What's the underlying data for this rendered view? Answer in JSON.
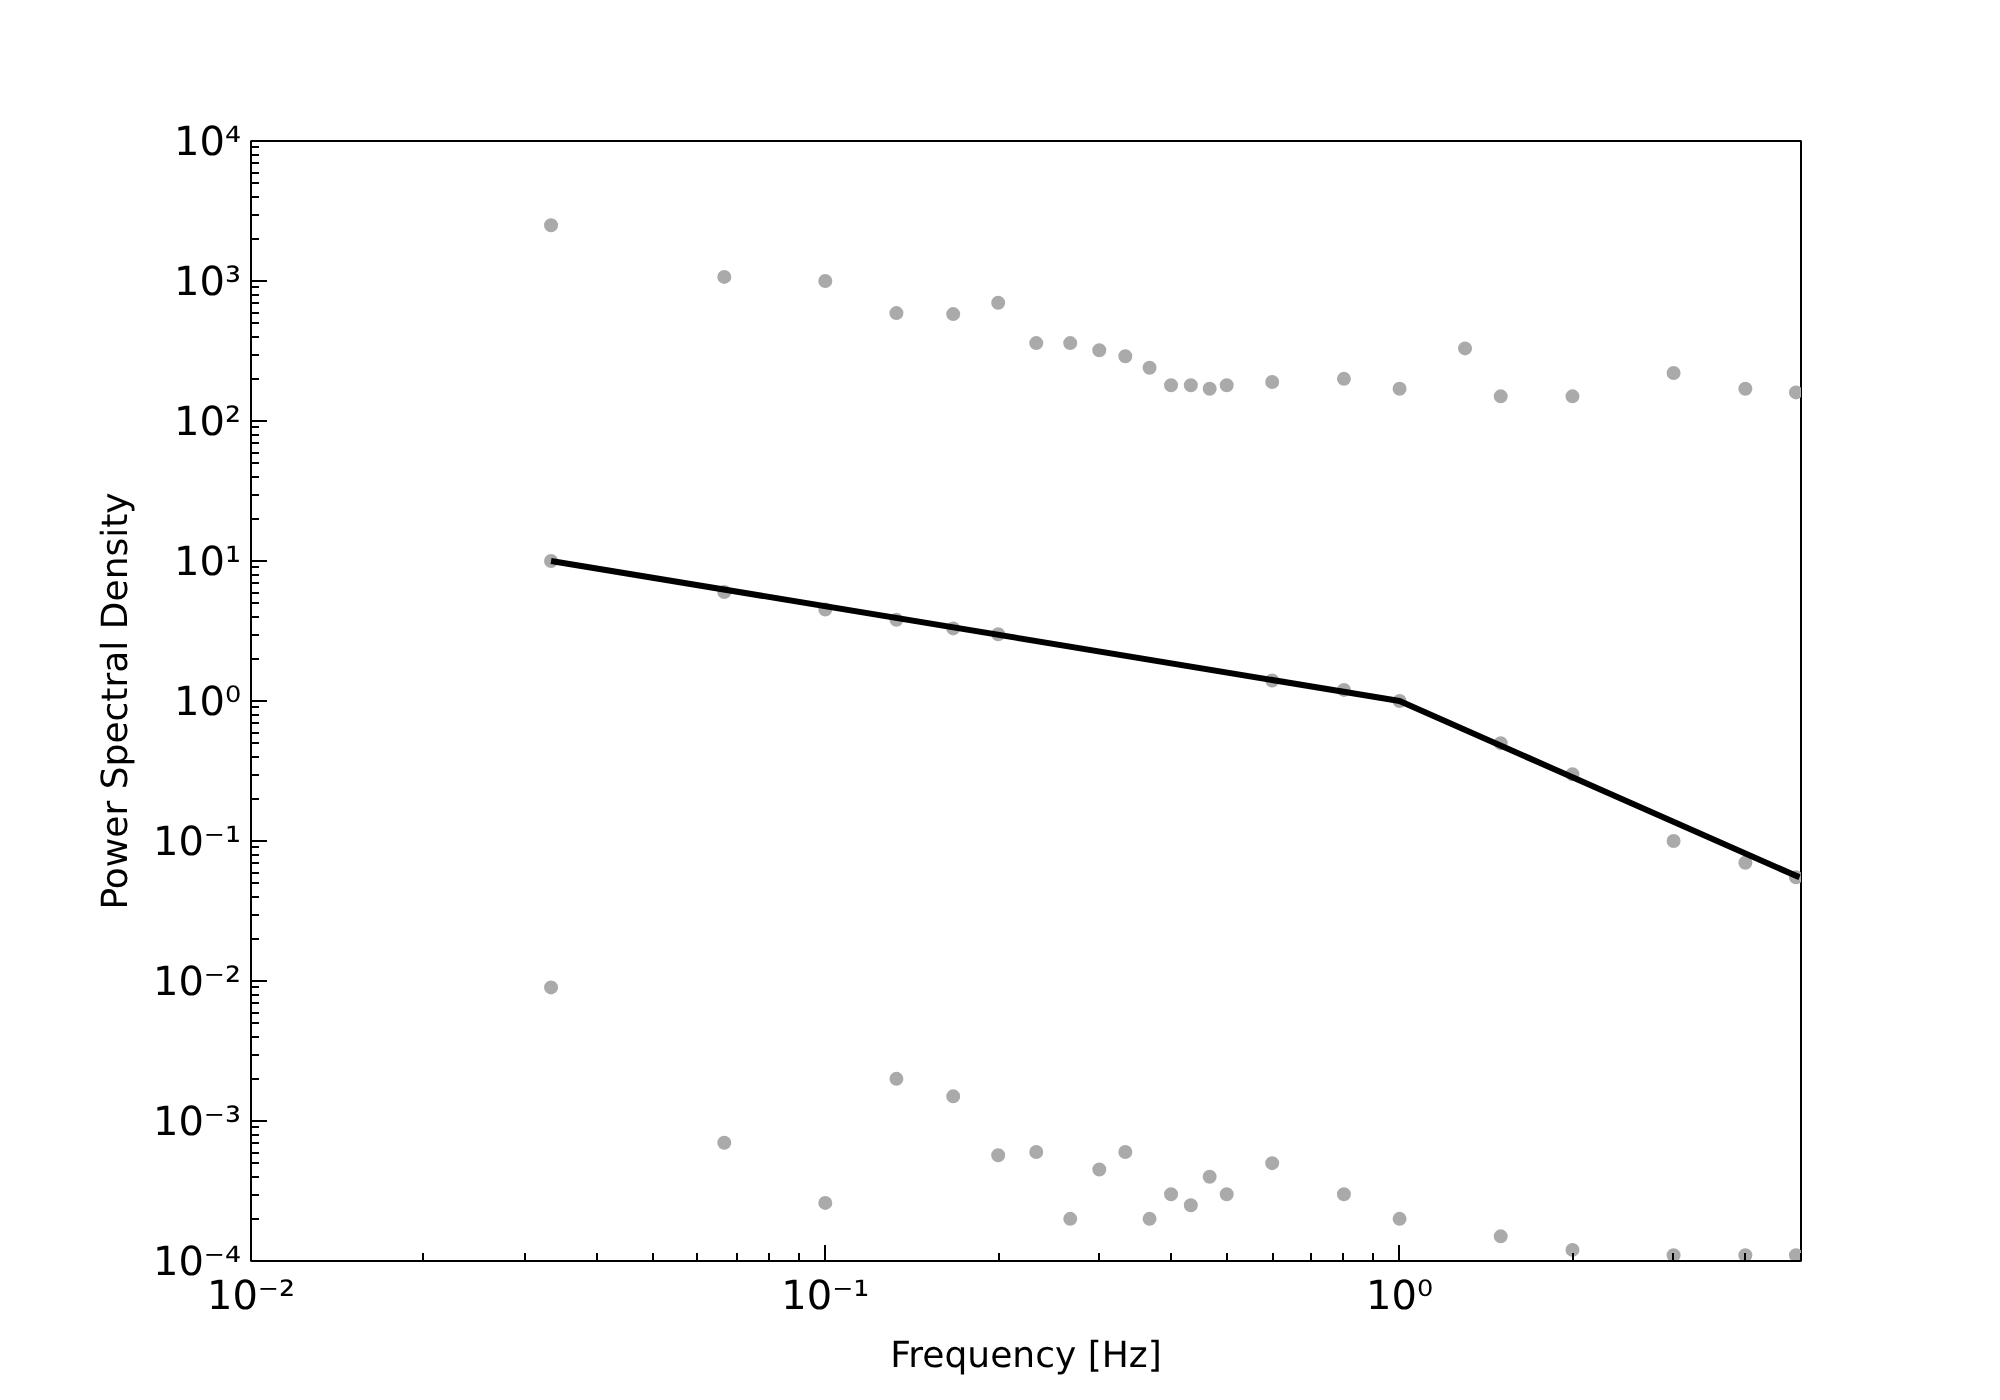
{
  "chart_data": {
    "type": "scatter",
    "xlabel": "Frequency [Hz]",
    "ylabel": "Power Spectral Density",
    "log": "xy",
    "grid": false,
    "marker": "circle",
    "xlim": [
      0.01,
      5
    ],
    "ylim": [
      0.0001,
      10000
    ],
    "xticks": [
      {
        "value": 0.01,
        "label": "10⁻²"
      },
      {
        "value": 0.1,
        "label": "10⁻¹"
      },
      {
        "value": 1,
        "label": "10⁰"
      }
    ],
    "yticks": [
      {
        "value": 0.0001,
        "label": "10⁻⁴"
      },
      {
        "value": 0.001,
        "label": "10⁻³"
      },
      {
        "value": 0.01,
        "label": "10⁻²"
      },
      {
        "value": 0.1,
        "label": "10⁻¹"
      },
      {
        "value": 1,
        "label": "10⁰"
      },
      {
        "value": 10,
        "label": "10¹"
      },
      {
        "value": 100,
        "label": "10²"
      },
      {
        "value": 1000,
        "label": "10³"
      },
      {
        "value": 10000,
        "label": "10⁴"
      }
    ],
    "series": [
      {
        "color": "#aaaaaa",
        "x": [
          0.0333,
          0.0333,
          0.0333,
          0.0667,
          0.0667,
          0.0667,
          0.1,
          0.1,
          0.1,
          0.133,
          0.133,
          0.133,
          0.167,
          0.167,
          0.167,
          0.2,
          0.2,
          0.2,
          0.233,
          0.233,
          0.267,
          0.267,
          0.3,
          0.3,
          0.333,
          0.333,
          0.367,
          0.367,
          0.4,
          0.4,
          0.433,
          0.433,
          0.467,
          0.467,
          0.5,
          0.5,
          0.6,
          0.6,
          0.6,
          0.8,
          0.8,
          0.8,
          1.0,
          1.0,
          1.0,
          1.3,
          1.5,
          1.5,
          1.5,
          2.0,
          2.0,
          2.0,
          3.0,
          3.0,
          3.0,
          4.0,
          4.0,
          4.0,
          4.9,
          4.9,
          4.9
        ],
        "values": [
          2500,
          10,
          0.009,
          1070,
          6,
          0.0007,
          1000,
          4.5,
          0.00026,
          590,
          3.8,
          0.002,
          580,
          3.3,
          0.0015,
          700,
          3,
          0.00057,
          360,
          0.0006,
          360,
          0.0002,
          320,
          0.00045,
          290,
          0.0006,
          240,
          0.0002,
          180,
          0.0003,
          180,
          0.00025,
          170,
          0.0004,
          180,
          0.0003,
          190,
          1.4,
          0.0005,
          200,
          1.2,
          0.0003,
          170,
          1,
          0.0002,
          330,
          150,
          0.5,
          0.00015,
          150,
          0.3,
          0.00012,
          220,
          0.1,
          0.00011,
          170,
          0.07,
          0.00011,
          160,
          0.055,
          0.00011
        ]
      },
      {
        "type": "line",
        "marker": "none",
        "color": "#000000",
        "x": [
          0.0333,
          1.0,
          4.97
        ],
        "values": [
          10,
          1,
          0.055
        ]
      }
    ]
  }
}
